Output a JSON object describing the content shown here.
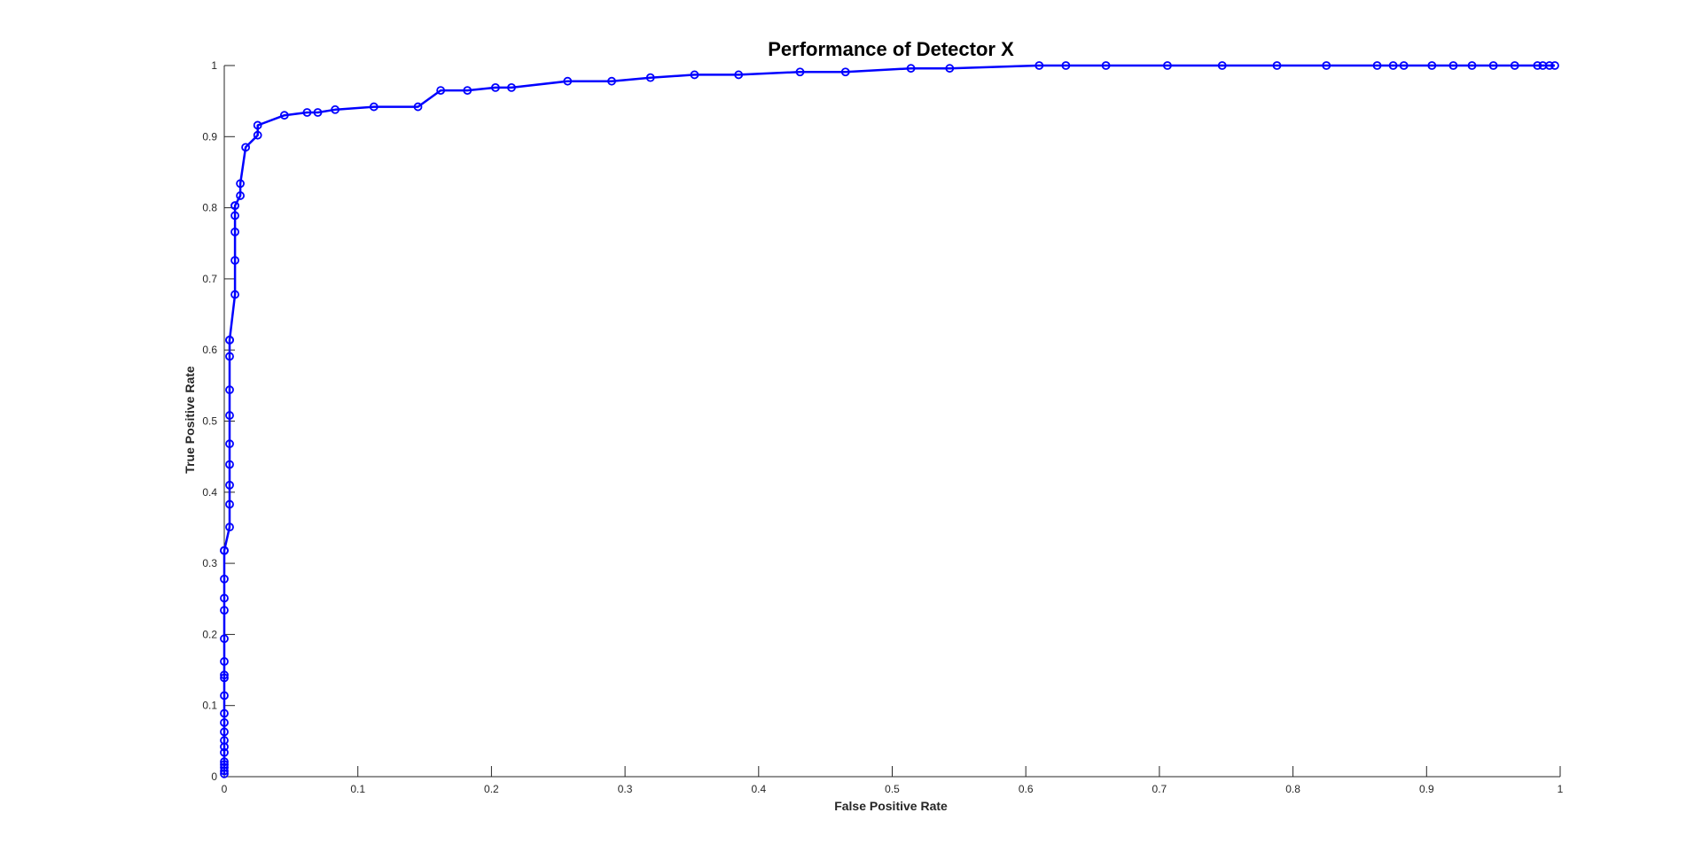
{
  "chart_data": {
    "type": "line",
    "title": "Performance of Detector X",
    "xlabel": "False Positive Rate",
    "ylabel": "True Positive Rate",
    "xlim": [
      0,
      1
    ],
    "ylim": [
      0,
      1
    ],
    "grid": false,
    "marker": "circle",
    "colors": {
      "line": "#0000ff",
      "axis": "#262626",
      "background": "#ffffff"
    },
    "x_ticks": [
      "0",
      "0.1",
      "0.2",
      "0.3",
      "0.4",
      "0.5",
      "0.6",
      "0.7",
      "0.8",
      "0.9",
      "1"
    ],
    "y_ticks": [
      "0",
      "0.1",
      "0.2",
      "0.3",
      "0.4",
      "0.5",
      "0.6",
      "0.7",
      "0.8",
      "0.9",
      "1"
    ],
    "series": [
      {
        "x": [
          0,
          0,
          0,
          0,
          0,
          0,
          0,
          0,
          0,
          0,
          0,
          0,
          0,
          0,
          0,
          0,
          0,
          0,
          0,
          0,
          0,
          0,
          0.004,
          0.004,
          0.004,
          0.004,
          0.004,
          0.004,
          0.004,
          0.004,
          0.004,
          0.004,
          0.008,
          0.008,
          0.008,
          0.008,
          0.008,
          0.008,
          0.012,
          0.012,
          0.016,
          0.025,
          0.025,
          0.045,
          0.062,
          0.07,
          0.083,
          0.112,
          0.145,
          0.162,
          0.182,
          0.203,
          0.215,
          0.257,
          0.29,
          0.319,
          0.352,
          0.385,
          0.431,
          0.465,
          0.514,
          0.543,
          0.61,
          0.63,
          0.66,
          0.706,
          0.747,
          0.788,
          0.825,
          0.863,
          0.875,
          0.883,
          0.904,
          0.92,
          0.934,
          0.95,
          0.966,
          0.983,
          0.987,
          0.992,
          0.996
        ],
        "y": [
          0.004,
          0.008,
          0.013,
          0.017,
          0.021,
          0.034,
          0.042,
          0.051,
          0.063,
          0.076,
          0.089,
          0.114,
          0.139,
          0.143,
          0.162,
          0.194,
          0.234,
          0.251,
          0.278,
          0.318,
          0.318,
          0.318,
          0.351,
          0.383,
          0.41,
          0.439,
          0.468,
          0.508,
          0.544,
          0.591,
          0.614,
          0.614,
          0.678,
          0.726,
          0.766,
          0.789,
          0.803,
          0.803,
          0.817,
          0.834,
          0.885,
          0.902,
          0.916,
          0.93,
          0.934,
          0.934,
          0.938,
          0.942,
          0.942,
          0.965,
          0.965,
          0.969,
          0.969,
          0.978,
          0.978,
          0.983,
          0.987,
          0.987,
          0.991,
          0.991,
          0.996,
          0.996,
          1,
          1,
          1,
          1,
          1,
          1,
          1,
          1,
          1,
          1,
          1,
          1,
          1,
          1,
          1,
          1,
          1,
          1,
          1
        ]
      }
    ]
  }
}
